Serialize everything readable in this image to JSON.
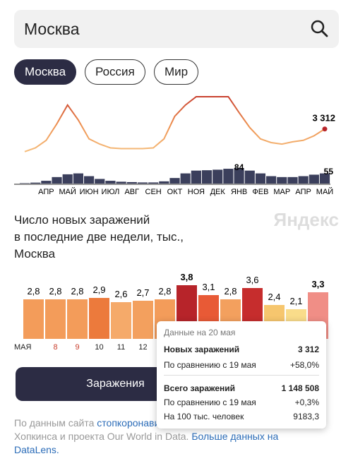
{
  "search": {
    "query": "Москва"
  },
  "tabs": [
    {
      "label": "Москва",
      "active": true
    },
    {
      "label": "Россия",
      "active": false
    },
    {
      "label": "Мир",
      "active": false
    }
  ],
  "chart_data": [
    {
      "type": "line",
      "categories": [
        null,
        null,
        "АПР",
        null,
        "МАЙ",
        null,
        "ИЮН",
        null,
        "ИЮЛ",
        null,
        "АВГ",
        null,
        "СЕН",
        null,
        "ОКТ",
        null,
        "НОЯ",
        null,
        "ДЕК",
        null,
        "ЯНВ",
        null,
        "ФЕВ",
        null,
        "МАР",
        null,
        "АПР",
        null,
        "МАЙ"
      ],
      "series": [
        {
          "values": [
            300,
            800,
            1800,
            4000,
            6500,
            4500,
            2000,
            1300,
            800,
            700,
            700,
            700,
            800,
            2000,
            5000,
            6500,
            7600,
            7600,
            7600,
            7600,
            5500,
            3500,
            2000,
            1500,
            1300,
            1600,
            1800,
            2400,
            3312
          ],
          "value_labels": [
            null,
            null,
            null,
            null,
            null,
            null,
            null,
            null,
            null,
            null,
            null,
            null,
            null,
            null,
            null,
            null,
            null,
            null,
            null,
            null,
            null,
            null,
            null,
            null,
            null,
            null,
            null,
            null,
            "3 312"
          ]
        },
        {
          "type": "bar",
          "axis": "y2",
          "color": "#3b3f5c",
          "values": [
            2,
            5,
            15,
            35,
            50,
            55,
            40,
            25,
            15,
            10,
            8,
            6,
            6,
            12,
            30,
            55,
            70,
            72,
            75,
            80,
            84,
            70,
            55,
            40,
            35,
            35,
            40,
            48,
            55
          ]
        }
      ]
    },
    {
      "type": "bar",
      "title": "Число новых заражений\nв последние две недели, тыс.,\nМосква",
      "categories": [
        "МАЯ",
        "8",
        "9",
        "10",
        "11",
        "12",
        null,
        null,
        null,
        null,
        null,
        null,
        null,
        null
      ],
      "category_colors": [
        "#222",
        "#c9412f",
        "#c9412f",
        "#222",
        "#222",
        "#222",
        null,
        null,
        null,
        null,
        null,
        null,
        null,
        null
      ],
      "values": [
        2.8,
        2.8,
        2.8,
        2.9,
        2.6,
        2.7,
        2.8,
        3.8,
        3.1,
        2.8,
        3.6,
        2.4,
        2.1,
        3.3
      ],
      "value_labels": [
        "2,8",
        "2,8",
        "2,8",
        "2,9",
        "2,6",
        "2,7",
        "2,8",
        "3,8",
        "3,1",
        "2,8",
        "3,6",
        "2,4",
        "2,1",
        "3,3"
      ],
      "colors": [
        "#f39c5a",
        "#f39c5a",
        "#f39c5a",
        "#ec7a3c",
        "#f5aa6a",
        "#f3a05e",
        "#f39c5a",
        "#b7242a",
        "#e85a36",
        "#f3a05e",
        "#c62d2d",
        "#f6c66e",
        "#f9dc8a",
        "#f08e86"
      ]
    }
  ],
  "logo": "Яндекс",
  "tooltip": {
    "title": "Данные на 20 мая",
    "rows": [
      [
        "Новых заражений",
        "3 312"
      ],
      [
        "По сравнению с 19 мая",
        "+58,0%"
      ],
      [
        "Всего заражений",
        "1 148 508"
      ],
      [
        "По сравнению с 19 мая",
        "+0,3%"
      ],
      [
        "На 100 тыс. человек",
        "9183,3"
      ]
    ]
  },
  "button": "Заражения",
  "footer": {
    "text1": "По данным сайта ",
    "link1": "стопкоронавирус.рф",
    "text2": ", университета Джонса Хопкинса и проекта Our World in Data. ",
    "link2": "Больше данных на DataLens."
  }
}
